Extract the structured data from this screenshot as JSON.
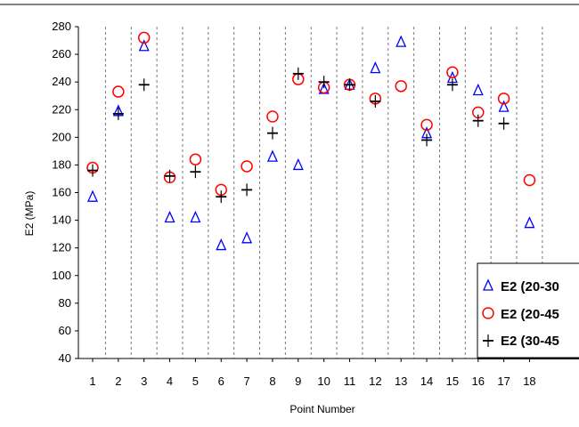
{
  "chart_data": {
    "type": "scatter",
    "title": "",
    "xlabel": "Point Number",
    "ylabel": "E2  (MPa)",
    "ylim": [
      40,
      280
    ],
    "yticks": [
      40,
      60,
      80,
      100,
      120,
      140,
      160,
      180,
      200,
      220,
      240,
      260,
      280
    ],
    "categories": [
      "1",
      "2",
      "3",
      "4",
      "5",
      "6",
      "7",
      "8",
      "9",
      "10",
      "11",
      "12",
      "13",
      "14",
      "15",
      "16",
      "17",
      "18"
    ],
    "grid": "vertical dashed",
    "legend_position": "bottom-right",
    "series": [
      {
        "name": "E2 (20-30",
        "marker": "triangle",
        "color": "#0000ff",
        "values": [
          157,
          219,
          266,
          142,
          142,
          122,
          127,
          186,
          180,
          235,
          238,
          250,
          269,
          203,
          243,
          234,
          222,
          138
        ]
      },
      {
        "name": "E2 (20-45",
        "marker": "circle",
        "color": "#ff0000",
        "values": [
          178,
          233,
          272,
          171,
          184,
          162,
          179,
          215,
          242,
          236,
          238,
          228,
          237,
          209,
          247,
          218,
          228,
          169
        ]
      },
      {
        "name": "E2 (30-45",
        "marker": "plus",
        "color": "#000000",
        "values": [
          176,
          217,
          238,
          172,
          175,
          157,
          162,
          203,
          246,
          240,
          238,
          226,
          null,
          198,
          238,
          212,
          210,
          null
        ]
      }
    ]
  }
}
